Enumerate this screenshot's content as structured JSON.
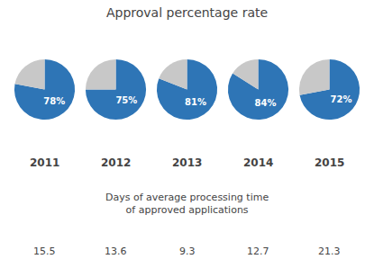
{
  "chart_data": {
    "type": "pie",
    "title": "Approval percentage rate",
    "subtitle": [
      "Days of average processing time",
      "of approved applications"
    ],
    "colors": [
      "#2E75B6",
      "#C8C8C8"
    ],
    "data_labels": true,
    "series": [
      {
        "name": "2011",
        "values": [
          78,
          22
        ],
        "value_labels": [
          "78%",
          null
        ]
      },
      {
        "name": "2012",
        "values": [
          75,
          25
        ],
        "value_labels": [
          "75%",
          null
        ]
      },
      {
        "name": "2013",
        "values": [
          81,
          19
        ],
        "value_labels": [
          "81%",
          null
        ]
      },
      {
        "name": "2014",
        "values": [
          84,
          16
        ],
        "value_labels": [
          "84%",
          null
        ]
      },
      {
        "name": "2015",
        "values": [
          72,
          28
        ],
        "value_labels": [
          "72%",
          null
        ]
      }
    ],
    "annotations": [
      "15.5",
      "13.6",
      "9.3",
      "12.7",
      "21.3"
    ]
  }
}
